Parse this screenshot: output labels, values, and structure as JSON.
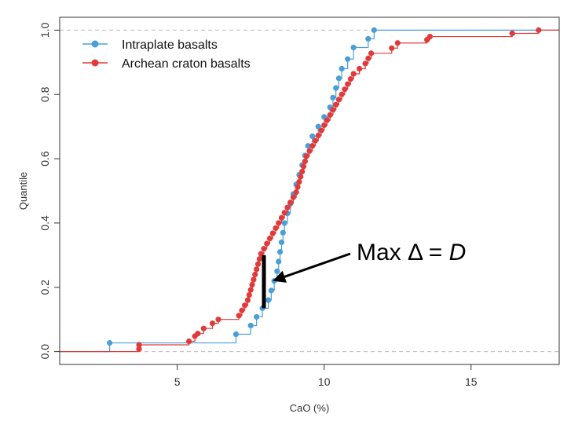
{
  "chart_data": {
    "type": "line",
    "title": "",
    "xlabel": "CaO (%)",
    "ylabel": "Quantile",
    "xlim": [
      1.0,
      18.0
    ],
    "ylim": [
      -0.04,
      1.04
    ],
    "xticks": [
      5,
      10,
      15
    ],
    "yticks": [
      0.0,
      0.2,
      0.4,
      0.6,
      0.8,
      1.0
    ],
    "xtick_labels": [
      "5",
      "10",
      "15"
    ],
    "ytick_labels": [
      "0.0",
      "0.2",
      "0.4",
      "0.6",
      "0.8",
      "1.0"
    ],
    "reference_lines": [
      0.0,
      1.0
    ],
    "grid": false,
    "legend_position": "top-left",
    "colors": {
      "intraplate": "#4a9fd8",
      "archean": "#e03a3a"
    },
    "series": [
      {
        "name": "Intraplate basalts",
        "color": "#4a9fd8",
        "points": [
          [
            2.7,
            0.027
          ],
          [
            7.0,
            0.054
          ],
          [
            7.5,
            0.081
          ],
          [
            7.7,
            0.108
          ],
          [
            7.9,
            0.135
          ],
          [
            8.1,
            0.16
          ],
          [
            8.2,
            0.19
          ],
          [
            8.3,
            0.22
          ],
          [
            8.4,
            0.25
          ],
          [
            8.45,
            0.28
          ],
          [
            8.5,
            0.31
          ],
          [
            8.55,
            0.34
          ],
          [
            8.6,
            0.37
          ],
          [
            8.65,
            0.4
          ],
          [
            8.75,
            0.43
          ],
          [
            8.85,
            0.46
          ],
          [
            8.95,
            0.49
          ],
          [
            9.05,
            0.52
          ],
          [
            9.15,
            0.55
          ],
          [
            9.25,
            0.58
          ],
          [
            9.35,
            0.61
          ],
          [
            9.45,
            0.64
          ],
          [
            9.6,
            0.67
          ],
          [
            9.8,
            0.7
          ],
          [
            10.0,
            0.73
          ],
          [
            10.2,
            0.76
          ],
          [
            10.3,
            0.79
          ],
          [
            10.4,
            0.82
          ],
          [
            10.5,
            0.85
          ],
          [
            10.6,
            0.88
          ],
          [
            10.8,
            0.91
          ],
          [
            11.0,
            0.946
          ],
          [
            11.5,
            0.973
          ],
          [
            11.7,
            1.0
          ]
        ]
      },
      {
        "name": "Archean craton basalts",
        "color": "#e03a3a",
        "points": [
          [
            3.7,
            0.008
          ],
          [
            3.7,
            0.021
          ],
          [
            5.4,
            0.032
          ],
          [
            5.6,
            0.048
          ],
          [
            5.7,
            0.056
          ],
          [
            5.9,
            0.072
          ],
          [
            6.2,
            0.088
          ],
          [
            6.4,
            0.1
          ],
          [
            7.1,
            0.112
          ],
          [
            7.2,
            0.128
          ],
          [
            7.3,
            0.144
          ],
          [
            7.4,
            0.16
          ],
          [
            7.45,
            0.176
          ],
          [
            7.5,
            0.192
          ],
          [
            7.55,
            0.208
          ],
          [
            7.6,
            0.224
          ],
          [
            7.65,
            0.24
          ],
          [
            7.7,
            0.256
          ],
          [
            7.75,
            0.272
          ],
          [
            7.8,
            0.288
          ],
          [
            7.85,
            0.304
          ],
          [
            7.95,
            0.32
          ],
          [
            8.05,
            0.336
          ],
          [
            8.15,
            0.352
          ],
          [
            8.25,
            0.368
          ],
          [
            8.35,
            0.384
          ],
          [
            8.45,
            0.4
          ],
          [
            8.55,
            0.416
          ],
          [
            8.65,
            0.432
          ],
          [
            8.75,
            0.448
          ],
          [
            8.85,
            0.464
          ],
          [
            8.95,
            0.48
          ],
          [
            9.05,
            0.496
          ],
          [
            9.1,
            0.512
          ],
          [
            9.15,
            0.528
          ],
          [
            9.2,
            0.544
          ],
          [
            9.25,
            0.56
          ],
          [
            9.3,
            0.576
          ],
          [
            9.35,
            0.592
          ],
          [
            9.4,
            0.608
          ],
          [
            9.5,
            0.624
          ],
          [
            9.6,
            0.64
          ],
          [
            9.7,
            0.656
          ],
          [
            9.8,
            0.672
          ],
          [
            9.9,
            0.688
          ],
          [
            10.0,
            0.704
          ],
          [
            10.1,
            0.72
          ],
          [
            10.2,
            0.736
          ],
          [
            10.3,
            0.752
          ],
          [
            10.4,
            0.768
          ],
          [
            10.5,
            0.784
          ],
          [
            10.6,
            0.8
          ],
          [
            10.7,
            0.816
          ],
          [
            10.8,
            0.832
          ],
          [
            10.9,
            0.848
          ],
          [
            11.0,
            0.864
          ],
          [
            11.2,
            0.88
          ],
          [
            11.4,
            0.896
          ],
          [
            11.5,
            0.912
          ],
          [
            11.6,
            0.928
          ],
          [
            12.3,
            0.944
          ],
          [
            12.5,
            0.96
          ],
          [
            13.5,
            0.97
          ],
          [
            13.6,
            0.98
          ],
          [
            16.4,
            0.99
          ],
          [
            17.3,
            1.0
          ]
        ]
      }
    ],
    "annotation": {
      "text_prefix": "Max ",
      "delta_symbol": "Δ",
      "text_equals": " = ",
      "text_var": "D",
      "bar_x": 7.95,
      "bar_y_low": 0.135,
      "bar_y_high": 0.3,
      "arrow_target": [
        8.25,
        0.22
      ]
    }
  }
}
